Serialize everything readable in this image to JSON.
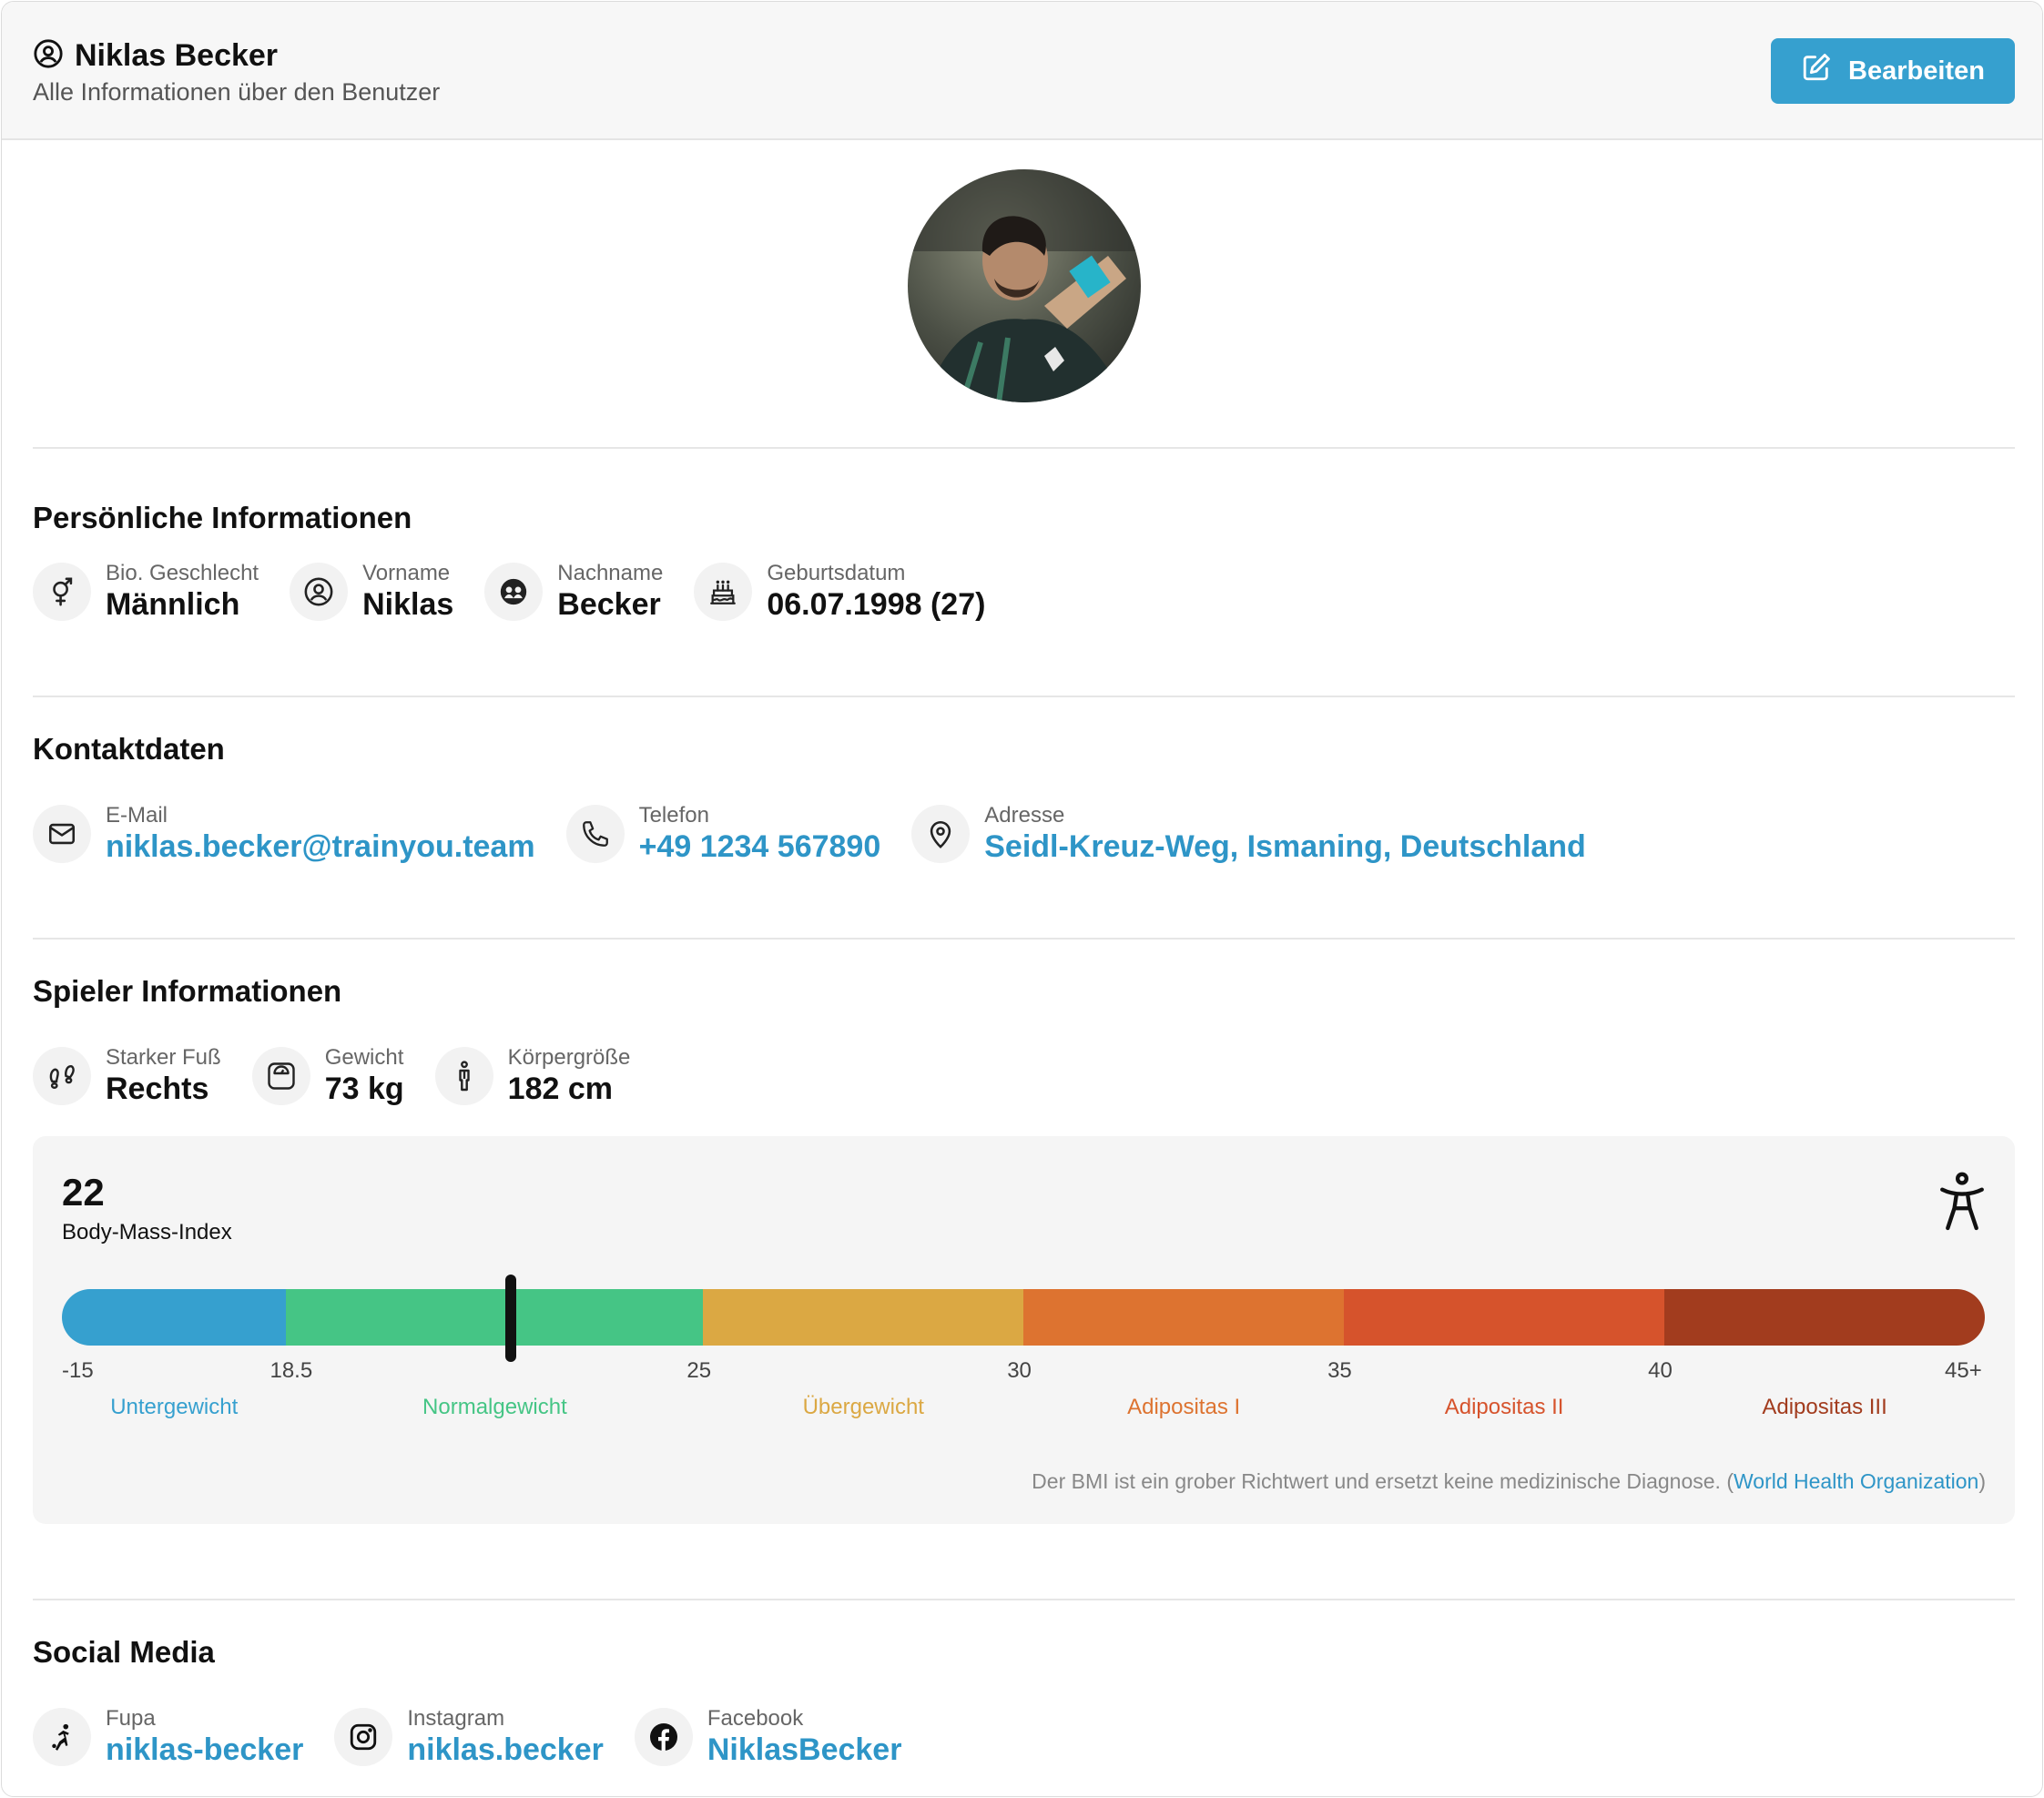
{
  "header": {
    "title": "Niklas Becker",
    "subtitle": "Alle Informationen über den Benutzer",
    "edit_label": "Bearbeiten"
  },
  "personal": {
    "title": "Persönliche Informationen",
    "fields": [
      {
        "label": "Bio. Geschlecht",
        "value": "Männlich",
        "icon": "gender-icon"
      },
      {
        "label": "Vorname",
        "value": "Niklas",
        "icon": "user-circle-icon"
      },
      {
        "label": "Nachname",
        "value": "Becker",
        "icon": "users-icon"
      },
      {
        "label": "Geburtsdatum",
        "value": "06.07.1998 (27)",
        "icon": "cake-icon"
      }
    ]
  },
  "contact": {
    "title": "Kontaktdaten",
    "fields": [
      {
        "label": "E-Mail",
        "value": "niklas.becker@trainyou.team",
        "icon": "mail-icon"
      },
      {
        "label": "Telefon",
        "value": "+49 1234 567890",
        "icon": "phone-icon"
      },
      {
        "label": "Adresse",
        "value": "Seidl-Kreuz-Weg, Ismaning, Deutschland",
        "icon": "map-pin-icon"
      }
    ]
  },
  "player": {
    "title": "Spieler Informationen",
    "fields": [
      {
        "label": "Starker Fuß",
        "value": "Rechts",
        "icon": "footprints-icon"
      },
      {
        "label": "Gewicht",
        "value": "73 kg",
        "icon": "scale-icon"
      },
      {
        "label": "Körpergröße",
        "value": "182 cm",
        "icon": "person-height-icon"
      }
    ]
  },
  "bmi": {
    "value": "22",
    "value_number": 22,
    "label": "Body-Mass-Index",
    "icon": "accessibility-icon",
    "ticks": [
      "-15",
      "18.5",
      "25",
      "30",
      "35",
      "40",
      "45+"
    ],
    "categories": [
      {
        "name": "Untergewicht",
        "color": "#36a0cf"
      },
      {
        "name": "Normalgewicht",
        "color": "#45c585"
      },
      {
        "name": "Übergewicht",
        "color": "#dba843"
      },
      {
        "name": "Adipositas I",
        "color": "#dd7330"
      },
      {
        "name": "Adipositas II",
        "color": "#d6532c"
      },
      {
        "name": "Adipositas III",
        "color": "#a23c1e"
      }
    ],
    "note": "Der BMI ist ein grober Richtwert und ersetzt keine medizinische Diagnose. (",
    "note_link": "World Health Organization",
    "note_end": ")"
  },
  "social": {
    "title": "Social Media",
    "fields": [
      {
        "label": "Fupa",
        "value": "niklas-becker",
        "icon": "soccer-player-icon"
      },
      {
        "label": "Instagram",
        "value": "niklas.becker",
        "icon": "instagram-icon"
      },
      {
        "label": "Facebook",
        "value": "NiklasBecker",
        "icon": "facebook-icon"
      }
    ]
  }
}
